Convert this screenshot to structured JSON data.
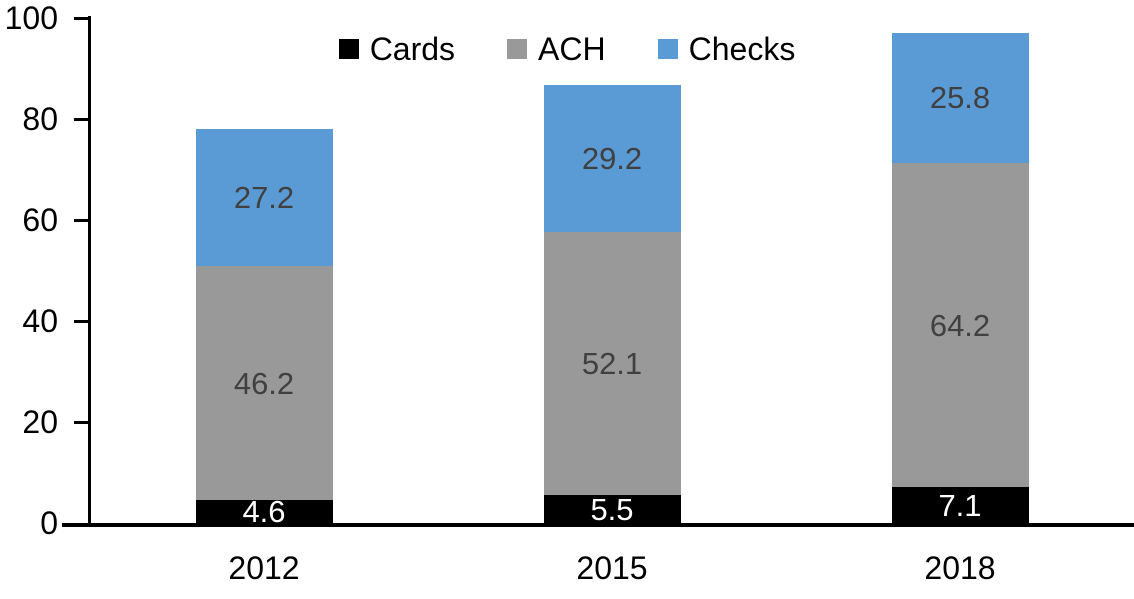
{
  "chart_data": {
    "type": "bar",
    "stacked": true,
    "title": "",
    "xlabel": "",
    "ylabel": "",
    "categories": [
      "2012",
      "2015",
      "2018"
    ],
    "series": [
      {
        "name": "Cards",
        "color": "#000000",
        "label_color": "#ffffff",
        "values": [
          4.6,
          5.5,
          7.1
        ]
      },
      {
        "name": "ACH",
        "color": "#999999",
        "label_color": "#404040",
        "values": [
          46.2,
          52.1,
          64.2
        ]
      },
      {
        "name": "Checks",
        "color": "#5b9bd5",
        "label_color": "#404040",
        "values": [
          27.2,
          29.2,
          25.8
        ]
      }
    ],
    "totals": [
      78.0,
      86.8,
      97.1
    ],
    "ylim": [
      0,
      100
    ],
    "yticks": [
      0,
      20,
      40,
      60,
      80,
      100
    ],
    "grid": false,
    "legend_position": "top-center",
    "value_labels": true
  },
  "colors": {
    "background": "#ffffff",
    "axis": "#000000",
    "tick_label": "#000000",
    "legend_text": "#000000"
  }
}
